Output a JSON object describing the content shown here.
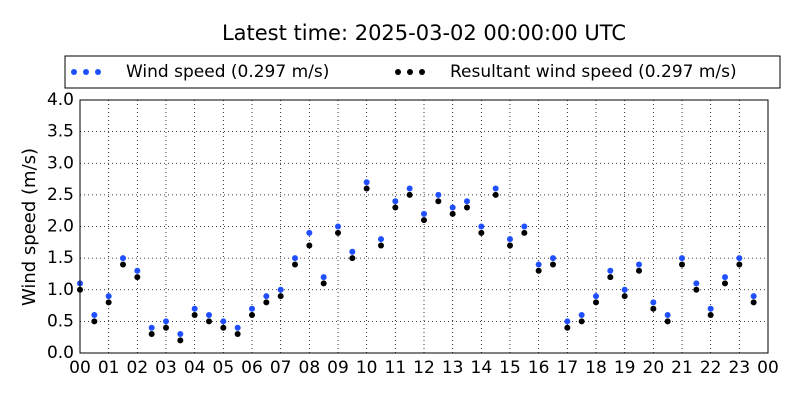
{
  "chart_data": {
    "type": "scatter",
    "title": "Latest time: 2025-03-02 00:00:00 UTC",
    "y_label": "Wind speed (m/s)",
    "x": [
      0,
      0.5,
      1,
      1.5,
      2,
      2.5,
      3,
      3.5,
      4,
      4.5,
      5,
      5.5,
      6,
      6.5,
      7,
      7.5,
      8,
      8.5,
      9,
      9.5,
      10,
      10.5,
      11,
      11.5,
      12,
      12.5,
      13,
      13.5,
      14,
      14.5,
      15,
      15.5,
      16,
      16.5,
      17,
      17.5,
      18,
      18.5,
      19,
      19.5,
      20,
      20.5,
      21,
      21.5,
      22,
      22.5,
      23,
      23.5
    ],
    "series": [
      {
        "name": "Wind speed (0.297 m/s)",
        "color": "#1f4fff",
        "values": [
          1.1,
          0.6,
          0.9,
          1.5,
          1.3,
          0.4,
          0.5,
          0.3,
          0.7,
          0.6,
          0.5,
          0.4,
          0.7,
          0.9,
          1.0,
          1.5,
          1.9,
          1.2,
          2.0,
          1.6,
          2.7,
          1.8,
          2.4,
          2.6,
          2.2,
          2.5,
          2.3,
          2.4,
          2.0,
          2.6,
          1.8,
          2.0,
          1.4,
          1.5,
          0.5,
          0.6,
          0.9,
          1.3,
          1.0,
          1.4,
          0.8,
          0.6,
          1.5,
          1.1,
          0.7,
          1.2,
          1.5,
          0.9
        ]
      },
      {
        "name": "Resultant wind speed (0.297 m/s)",
        "color": "#000000",
        "values": [
          1.0,
          0.5,
          0.8,
          1.4,
          1.2,
          0.3,
          0.4,
          0.2,
          0.6,
          0.5,
          0.4,
          0.3,
          0.6,
          0.8,
          0.9,
          1.4,
          1.7,
          1.1,
          1.9,
          1.5,
          2.6,
          1.7,
          2.3,
          2.5,
          2.1,
          2.4,
          2.2,
          2.3,
          1.9,
          2.5,
          1.7,
          1.9,
          1.3,
          1.4,
          0.4,
          0.5,
          0.8,
          1.2,
          0.9,
          1.3,
          0.7,
          0.5,
          1.4,
          1.0,
          0.6,
          1.1,
          1.4,
          0.8
        ]
      }
    ],
    "xlim": [
      0,
      24
    ],
    "xticks": [
      {
        "value": 0,
        "label": "00"
      },
      {
        "value": 1,
        "label": "01"
      },
      {
        "value": 2,
        "label": "02"
      },
      {
        "value": 3,
        "label": "03"
      },
      {
        "value": 4,
        "label": "04"
      },
      {
        "value": 5,
        "label": "05"
      },
      {
        "value": 6,
        "label": "06"
      },
      {
        "value": 7,
        "label": "07"
      },
      {
        "value": 8,
        "label": "08"
      },
      {
        "value": 9,
        "label": "09"
      },
      {
        "value": 10,
        "label": "10"
      },
      {
        "value": 11,
        "label": "11"
      },
      {
        "value": 12,
        "label": "12"
      },
      {
        "value": 13,
        "label": "13"
      },
      {
        "value": 14,
        "label": "14"
      },
      {
        "value": 15,
        "label": "15"
      },
      {
        "value": 16,
        "label": "16"
      },
      {
        "value": 17,
        "label": "17"
      },
      {
        "value": 18,
        "label": "18"
      },
      {
        "value": 19,
        "label": "19"
      },
      {
        "value": 20,
        "label": "20"
      },
      {
        "value": 21,
        "label": "21"
      },
      {
        "value": 22,
        "label": "22"
      },
      {
        "value": 23,
        "label": "23"
      },
      {
        "value": 24,
        "label": "00"
      }
    ],
    "ylim": [
      0,
      4
    ],
    "yticks": [
      {
        "value": 0,
        "label": "0.0"
      },
      {
        "value": 0.5,
        "label": "0.5"
      },
      {
        "value": 1,
        "label": "1.0"
      },
      {
        "value": 1.5,
        "label": "1.5"
      },
      {
        "value": 2,
        "label": "2.0"
      },
      {
        "value": 2.5,
        "label": "2.5"
      },
      {
        "value": 3,
        "label": "3.0"
      },
      {
        "value": 3.5,
        "label": "3.5"
      },
      {
        "value": 4,
        "label": "4.0"
      }
    ],
    "grid": true
  }
}
